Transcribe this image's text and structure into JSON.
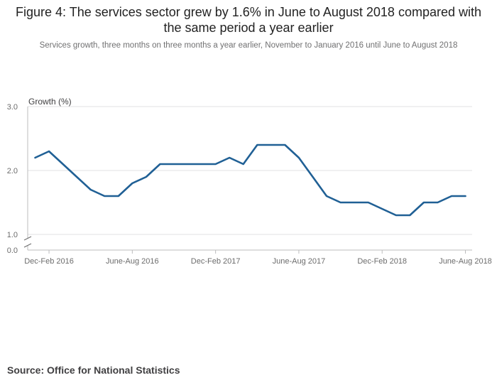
{
  "header": {
    "title": "Figure 4: The services sector grew by 1.6% in June to August 2018 compared with the same period a year earlier",
    "subtitle": "Services growth, three months on three months a year earlier, November to January 2016 until June to August 2018"
  },
  "footer": {
    "source": "Source: Office for National Statistics"
  },
  "chart_data": {
    "type": "line",
    "title": "Figure 4: The services sector grew by 1.6% in June to August 2018 compared with the same period a year earlier",
    "subtitle": "Services growth, three months on three months a year earlier, November to January 2016 until June to August 2018",
    "ylabel": "Growth (%)",
    "xlabel": "",
    "y_ticks": [
      "0.0",
      "1.0",
      "2.0",
      "3.0"
    ],
    "y_axis_break": true,
    "ylim": [
      1.0,
      3.0
    ],
    "grid": true,
    "line_color": "#206095",
    "x_tick_labels": [
      "Dec-Feb 2016",
      "June-Aug 2016",
      "Dec-Feb 2017",
      "June-Aug 2017",
      "Dec-Feb 2018",
      "June-Aug 2018"
    ],
    "x_tick_indices": [
      1,
      7,
      13,
      19,
      25,
      31
    ],
    "series": [
      {
        "x": [
          "Nov-Jan 2016",
          "Dec-Feb 2016",
          "Jan-Mar 2016",
          "Feb-Apr 2016",
          "Mar-May 2016",
          "Apr-June 2016",
          "May-July 2016",
          "June-Aug 2016",
          "July-Sept 2016",
          "Aug-Oct 2016",
          "Sept-Nov 2016",
          "Oct-Dec 2016",
          "Nov-Jan 2017",
          "Dec-Feb 2017",
          "Jan-Mar 2017",
          "Feb-Apr 2017",
          "Mar-May 2017",
          "Apr-June 2017",
          "May-July 2017",
          "June-Aug 2017",
          "July-Sept 2017",
          "Aug-Oct 2017",
          "Sept-Nov 2017",
          "Oct-Dec 2017",
          "Nov-Jan 2018",
          "Dec-Feb 2018",
          "Jan-Mar 2018",
          "Feb-Apr 2018",
          "Mar-May 2018",
          "Apr-June 2018",
          "May-July 2018",
          "June-Aug 2018"
        ],
        "values": [
          2.2,
          2.3,
          2.1,
          1.9,
          1.7,
          1.6,
          1.6,
          1.8,
          1.9,
          2.1,
          2.1,
          2.1,
          2.1,
          2.1,
          2.2,
          2.1,
          2.4,
          2.4,
          2.4,
          2.2,
          1.9,
          1.6,
          1.5,
          1.5,
          1.5,
          1.4,
          1.3,
          1.3,
          1.5,
          1.5,
          1.6,
          1.6
        ]
      }
    ]
  }
}
